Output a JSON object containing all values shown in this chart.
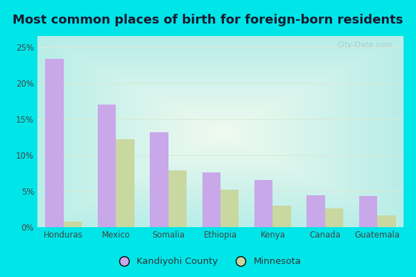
{
  "title": "Most common places of birth for foreign-born residents",
  "categories": [
    "Honduras",
    "Mexico",
    "Somalia",
    "Ethiopia",
    "Kenya",
    "Canada",
    "Guatemala"
  ],
  "kandiyohi_values": [
    0.233,
    0.17,
    0.132,
    0.076,
    0.065,
    0.044,
    0.043
  ],
  "minnesota_values": [
    0.008,
    0.122,
    0.079,
    0.052,
    0.03,
    0.026,
    0.016
  ],
  "kandiyohi_color": "#c8a8e8",
  "minnesota_color": "#c8d8a0",
  "background_outer": "#00e5e8",
  "background_inner_center": "#f0faf0",
  "background_inner_edge": "#b8ece8",
  "grid_color": "#d8ead8",
  "yticks": [
    0.0,
    0.05,
    0.1,
    0.15,
    0.2,
    0.25
  ],
  "ytick_labels": [
    "0%",
    "5%",
    "10%",
    "15%",
    "20%",
    "25%"
  ],
  "ylim": [
    0,
    0.265
  ],
  "legend_kandiyohi": "Kandiyohi County",
  "legend_minnesota": "Minnesota",
  "bar_width": 0.35,
  "title_fontsize": 13,
  "tick_fontsize": 8.5,
  "watermark_text": "City-Data.com",
  "title_color": "#1a1a2e"
}
